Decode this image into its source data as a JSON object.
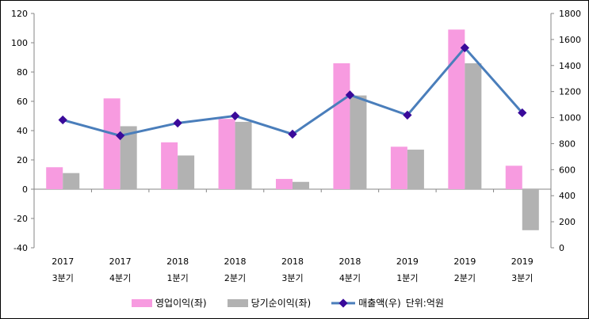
{
  "chart_data": {
    "type": "bar+line",
    "categories": [
      {
        "year": "2017",
        "quarter": "3분기"
      },
      {
        "year": "2017",
        "quarter": "4분기"
      },
      {
        "year": "2018",
        "quarter": "1분기"
      },
      {
        "year": "2018",
        "quarter": "2분기"
      },
      {
        "year": "2018",
        "quarter": "3분기"
      },
      {
        "year": "2018",
        "quarter": "4분기"
      },
      {
        "year": "2019",
        "quarter": "1분기"
      },
      {
        "year": "2019",
        "quarter": "2분기"
      },
      {
        "year": "2019",
        "quarter": "3분기"
      }
    ],
    "series": [
      {
        "name": "영업이익(좌)",
        "type": "bar",
        "axis": "left",
        "color": "#F79BE0",
        "values": [
          15,
          62,
          32,
          48,
          7,
          86,
          29,
          109,
          16
        ]
      },
      {
        "name": "당기순이익(좌)",
        "type": "bar",
        "axis": "left",
        "color": "#B2B2B2",
        "values": [
          11,
          43,
          23,
          46,
          5,
          64,
          27,
          86,
          -28
        ]
      },
      {
        "name": "매출액(우)",
        "type": "line",
        "axis": "right",
        "color": "#4A7EBB",
        "marker_color": "#3A0A9A",
        "values": [
          982,
          861,
          958,
          1013,
          873,
          1174,
          1019,
          1536,
          1037
        ]
      }
    ],
    "left_axis": {
      "range": [
        -40,
        120
      ],
      "ticks": [
        "-40",
        "-20",
        "0",
        "20",
        "40",
        "60",
        "80",
        "100",
        "120"
      ]
    },
    "right_axis": {
      "range": [
        0,
        1800
      ],
      "ticks": [
        "0",
        "200",
        "400",
        "600",
        "800",
        "1000",
        "1200",
        "1400",
        "1600",
        "1800"
      ]
    },
    "unit_note": "단위:억원",
    "legend_placement": "bottom",
    "grid": false
  }
}
